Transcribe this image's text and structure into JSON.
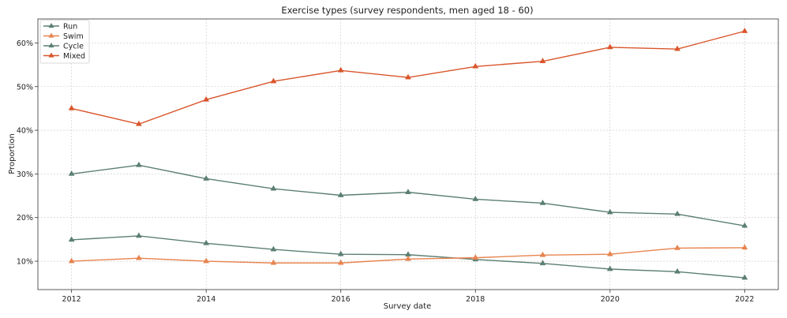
{
  "chart_data": {
    "type": "line",
    "title": "Exercise types (survey respondents, men aged 18 - 60)",
    "xlabel": "Survey date",
    "ylabel": "Proportion",
    "x": [
      2012,
      2013,
      2014,
      2015,
      2016,
      2017,
      2018,
      2019,
      2020,
      2021,
      2022
    ],
    "xlim": [
      2011.5,
      2022.5
    ],
    "ylim": [
      0.035,
      0.655
    ],
    "x_ticks": [
      "2012",
      "2014",
      "2016",
      "2018",
      "2020",
      "2022"
    ],
    "y_ticks": [
      "10%",
      "20%",
      "30%",
      "40%",
      "50%",
      "60%"
    ],
    "grid": true,
    "legend_position": "top-left",
    "series": [
      {
        "name": "Run",
        "color": "#5b7f72",
        "marker": "triangle",
        "values": [
          0.149,
          0.158,
          0.141,
          0.127,
          0.116,
          0.115,
          0.104,
          0.095,
          0.082,
          0.076,
          0.062
        ]
      },
      {
        "name": "Swim",
        "color": "#e8844f",
        "marker": "triangle",
        "values": [
          0.1,
          0.107,
          0.1,
          0.096,
          0.096,
          0.105,
          0.108,
          0.114,
          0.116,
          0.13,
          0.131
        ]
      },
      {
        "name": "Cycle",
        "color": "#5b7f72",
        "marker": "triangle",
        "values": [
          0.3,
          0.32,
          0.289,
          0.266,
          0.251,
          0.258,
          0.242,
          0.233,
          0.212,
          0.208,
          0.181
        ]
      },
      {
        "name": "Mixed",
        "color": "#d9552b",
        "marker": "triangle",
        "values": [
          0.45,
          0.414,
          0.47,
          0.512,
          0.537,
          0.521,
          0.546,
          0.558,
          0.59,
          0.586,
          0.627
        ]
      }
    ]
  }
}
